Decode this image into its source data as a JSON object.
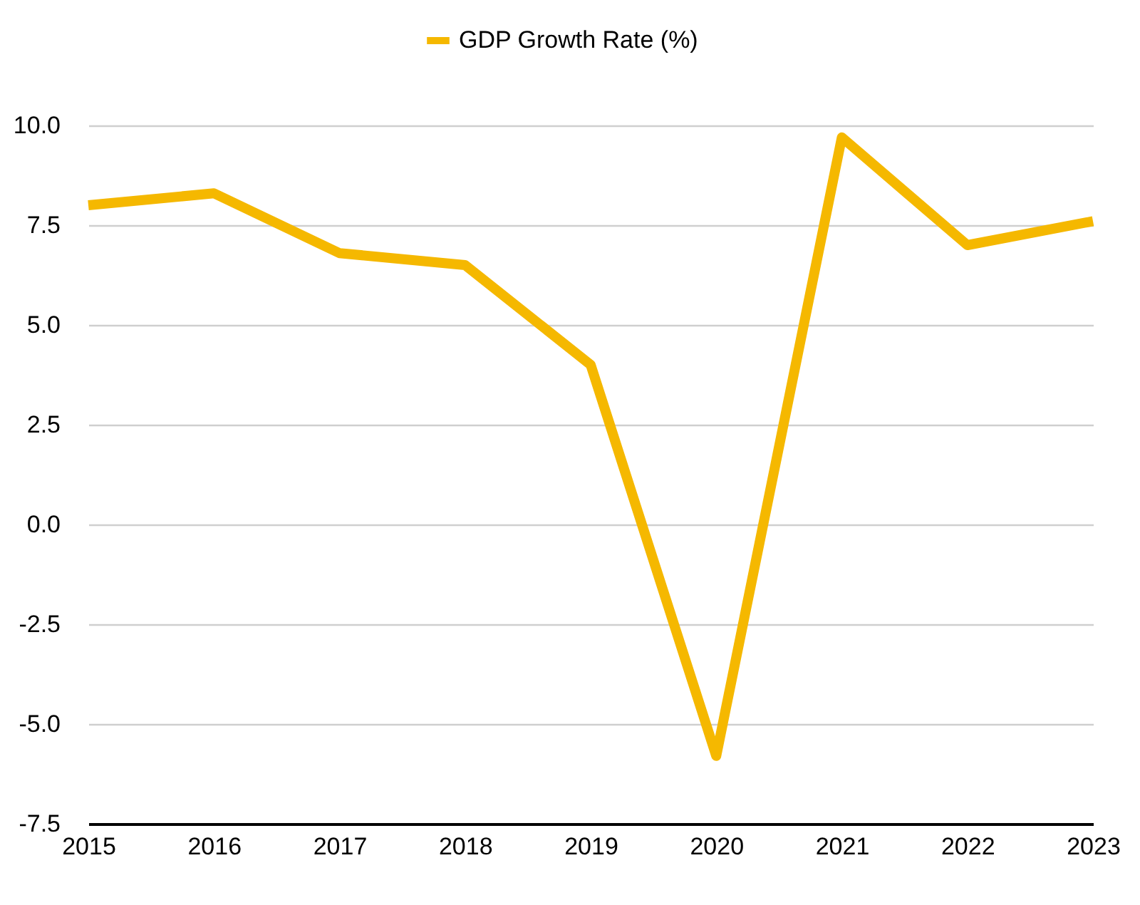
{
  "chart_data": {
    "type": "line",
    "categories": [
      "2015",
      "2016",
      "2017",
      "2018",
      "2019",
      "2020",
      "2021",
      "2022",
      "2023"
    ],
    "series": [
      {
        "name": "GDP Growth Rate (%)",
        "color": "#f5b800",
        "values": [
          8.0,
          8.3,
          6.8,
          6.5,
          4.0,
          -5.8,
          9.7,
          7.0,
          7.6
        ]
      }
    ],
    "ylim": [
      -7.5,
      10
    ],
    "yticks": [
      {
        "value": -7.5,
        "label": "-7.5"
      },
      {
        "value": -5,
        "label": "-5.0"
      },
      {
        "value": -2.5,
        "label": "-2.5"
      },
      {
        "value": 0,
        "label": "0.0"
      },
      {
        "value": 2.5,
        "label": "2.5"
      },
      {
        "value": 5,
        "label": "5.0"
      },
      {
        "value": 7.5,
        "label": "7.5"
      },
      {
        "value": 10,
        "label": "10.0"
      }
    ],
    "grid": "y",
    "legend": "top",
    "marker": "none",
    "line_style": "solid"
  }
}
